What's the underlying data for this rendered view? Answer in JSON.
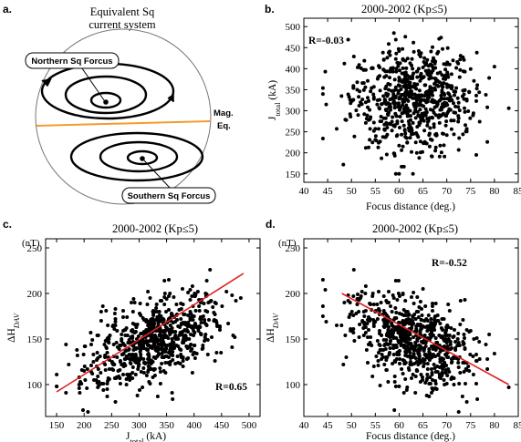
{
  "panel_a": {
    "letter": "a.",
    "title_line1": "Equivalent Sq",
    "title_line2": "current system",
    "north_label": "Northern Sq Forcus",
    "south_label": "Southern Sq Forcus",
    "eq_label_line1": "Mag.",
    "eq_label_line2": "Eq.",
    "equator_color": "#f39c2b"
  },
  "panels": [
    {
      "letter": "b.",
      "unit": "",
      "corr_label": "R=-0.03"
    },
    {
      "letter": "c.",
      "unit": "(nT)",
      "corr_label": "R=0.65"
    },
    {
      "letter": "d.",
      "unit": "(nT)",
      "corr_label": "R=-0.52"
    }
  ],
  "colors": {
    "points": "#000000",
    "fit_line": "#e02020"
  },
  "chart_data": [
    {
      "type": "scatter",
      "title": "2000-2002 (Kp≤5)",
      "xlabel": "Focus distance (deg.)",
      "ylabel": "J_total (kA)",
      "xlim": [
        40,
        85
      ],
      "ylim": [
        130,
        520
      ],
      "xticks": [
        40,
        45,
        50,
        55,
        60,
        65,
        70,
        75,
        80,
        85
      ],
      "yticks": [
        150,
        200,
        250,
        300,
        350,
        400,
        450,
        500
      ],
      "correlation": -0.03,
      "n_points": 720,
      "fit_line": null
    },
    {
      "type": "scatter",
      "title": "2000-2002 (Kp≤5)",
      "xlabel": "J_total (kA)",
      "ylabel": "ΔH_DAV",
      "xlim": [
        130,
        520
      ],
      "ylim": [
        65,
        260
      ],
      "xticks": [
        150,
        200,
        250,
        300,
        350,
        400,
        450,
        500
      ],
      "yticks": [
        100,
        150,
        200,
        250
      ],
      "correlation": 0.65,
      "n_points": 720,
      "fit_line": {
        "x": [
          150,
          490
        ],
        "y": [
          92,
          222
        ]
      }
    },
    {
      "type": "scatter",
      "title": "2000-2002 (Kp≤5)",
      "xlabel": "Focus distance (deg.)",
      "ylabel": "ΔH_DAV",
      "xlim": [
        40,
        85
      ],
      "ylim": [
        65,
        260
      ],
      "xticks": [
        40,
        45,
        50,
        55,
        60,
        65,
        70,
        75,
        80,
        85
      ],
      "yticks": [
        100,
        150,
        200,
        250
      ],
      "correlation": -0.52,
      "n_points": 720,
      "fit_line": {
        "x": [
          48,
          83
        ],
        "y": [
          200,
          100
        ]
      }
    }
  ]
}
